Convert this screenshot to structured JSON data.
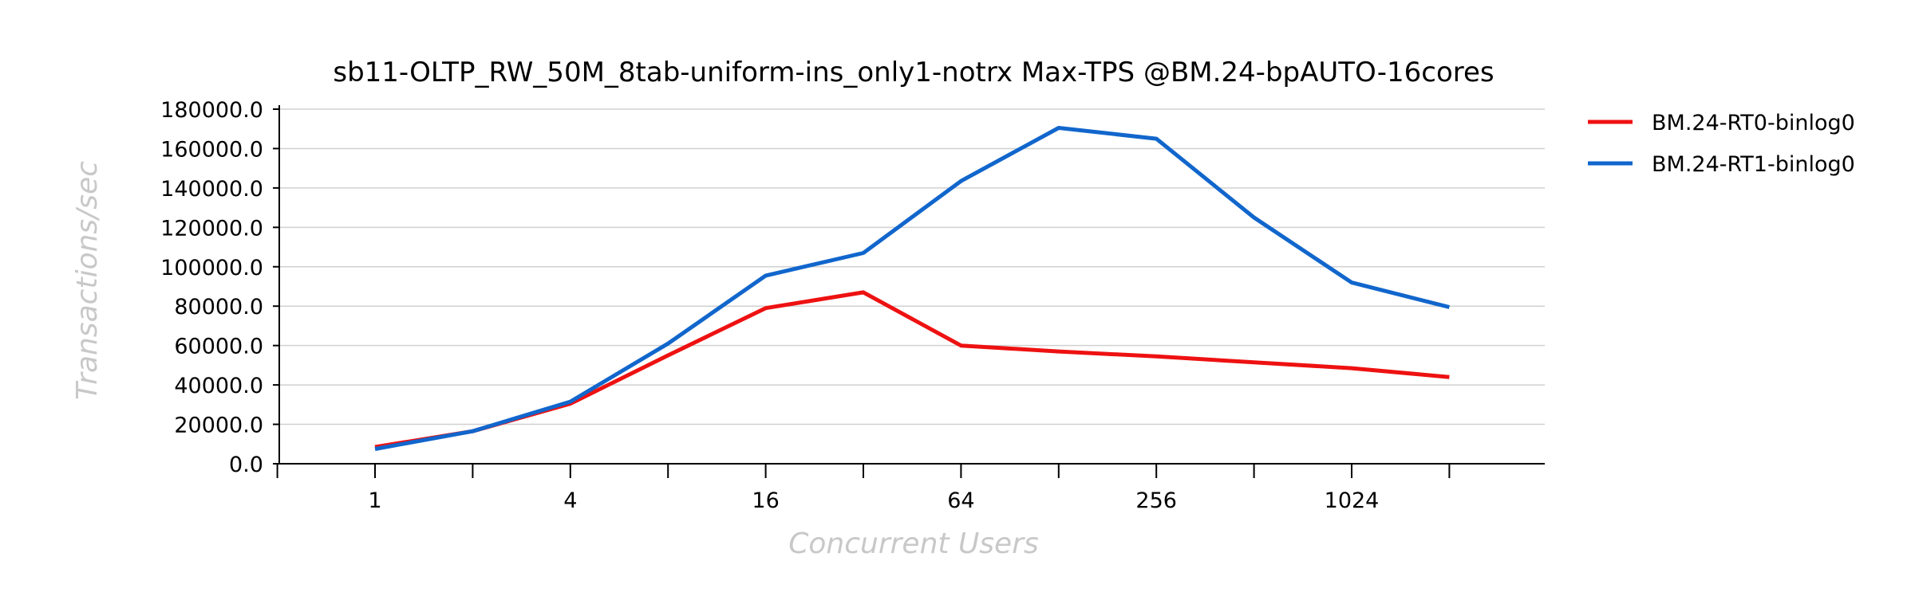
{
  "chart_data": {
    "type": "line",
    "title": "sb11-OLTP_RW_50M_8tab-uniform-ins_only1-notrx Max-TPS @BM.24-bpAUTO-16cores",
    "xlabel": "Concurrent Users",
    "ylabel": "Transactions/sec",
    "x": [
      1,
      2,
      4,
      8,
      16,
      32,
      64,
      128,
      256,
      512,
      1024,
      2048
    ],
    "xscale": "log2",
    "xtick_labels": [
      "1",
      "4",
      "16",
      "64",
      "256",
      "1024"
    ],
    "xtick_values": [
      1,
      4,
      16,
      64,
      256,
      1024
    ],
    "ylim": [
      0,
      180000
    ],
    "ytick_labels": [
      "0.0",
      "20000.0",
      "40000.0",
      "60000.0",
      "80000.0",
      "100000.0",
      "120000.0",
      "140000.0",
      "160000.0",
      "180000.0"
    ],
    "ytick_values": [
      0,
      20000,
      40000,
      60000,
      80000,
      100000,
      120000,
      140000,
      160000,
      180000
    ],
    "grid": true,
    "legend_position": "top-right outside",
    "series": [
      {
        "name": "BM.24-RT0-binlog0",
        "color": "#ee1111",
        "values": [
          8500,
          16500,
          30500,
          55000,
          79000,
          87000,
          60000,
          57000,
          54500,
          51500,
          48500,
          44000
        ]
      },
      {
        "name": "BM.24-RT1-binlog0",
        "color": "#1166cc",
        "values": [
          7500,
          16500,
          31500,
          61000,
          95500,
          107000,
          143500,
          170500,
          165000,
          125000,
          92000,
          79500
        ]
      }
    ]
  }
}
